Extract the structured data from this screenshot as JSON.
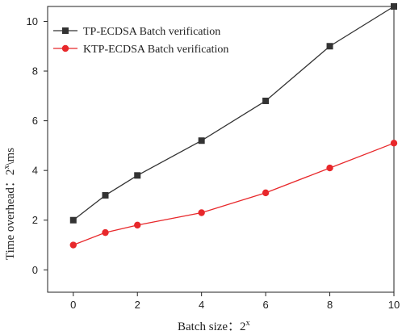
{
  "chart_data": {
    "type": "line",
    "xlabel_prefix": "Batch size：2",
    "xlabel_sup": "x",
    "ylabel_prefix": "Time overhead：2",
    "ylabel_sup": "x",
    "ylabel_suffix": "\\ms",
    "x": [
      0,
      1,
      2,
      4,
      6,
      8,
      10
    ],
    "x_ticks": [
      0,
      2,
      4,
      6,
      8,
      10
    ],
    "y_ticks": [
      0,
      2,
      4,
      6,
      8,
      10
    ],
    "xlim": [
      -0.8,
      10
    ],
    "ylim": [
      -0.9,
      10.6
    ],
    "legend_position": "top-left",
    "grid": false,
    "series": [
      {
        "name": "TP-ECDSA Batch verification",
        "color": "#333333",
        "marker": "square",
        "values": [
          2.0,
          3.0,
          3.8,
          5.2,
          6.8,
          9.0,
          10.6
        ]
      },
      {
        "name": "KTP-ECDSA Batch verification",
        "color": "#e8282b",
        "marker": "circle",
        "values": [
          1.0,
          1.5,
          1.8,
          2.3,
          3.1,
          4.1,
          5.1
        ]
      }
    ]
  }
}
